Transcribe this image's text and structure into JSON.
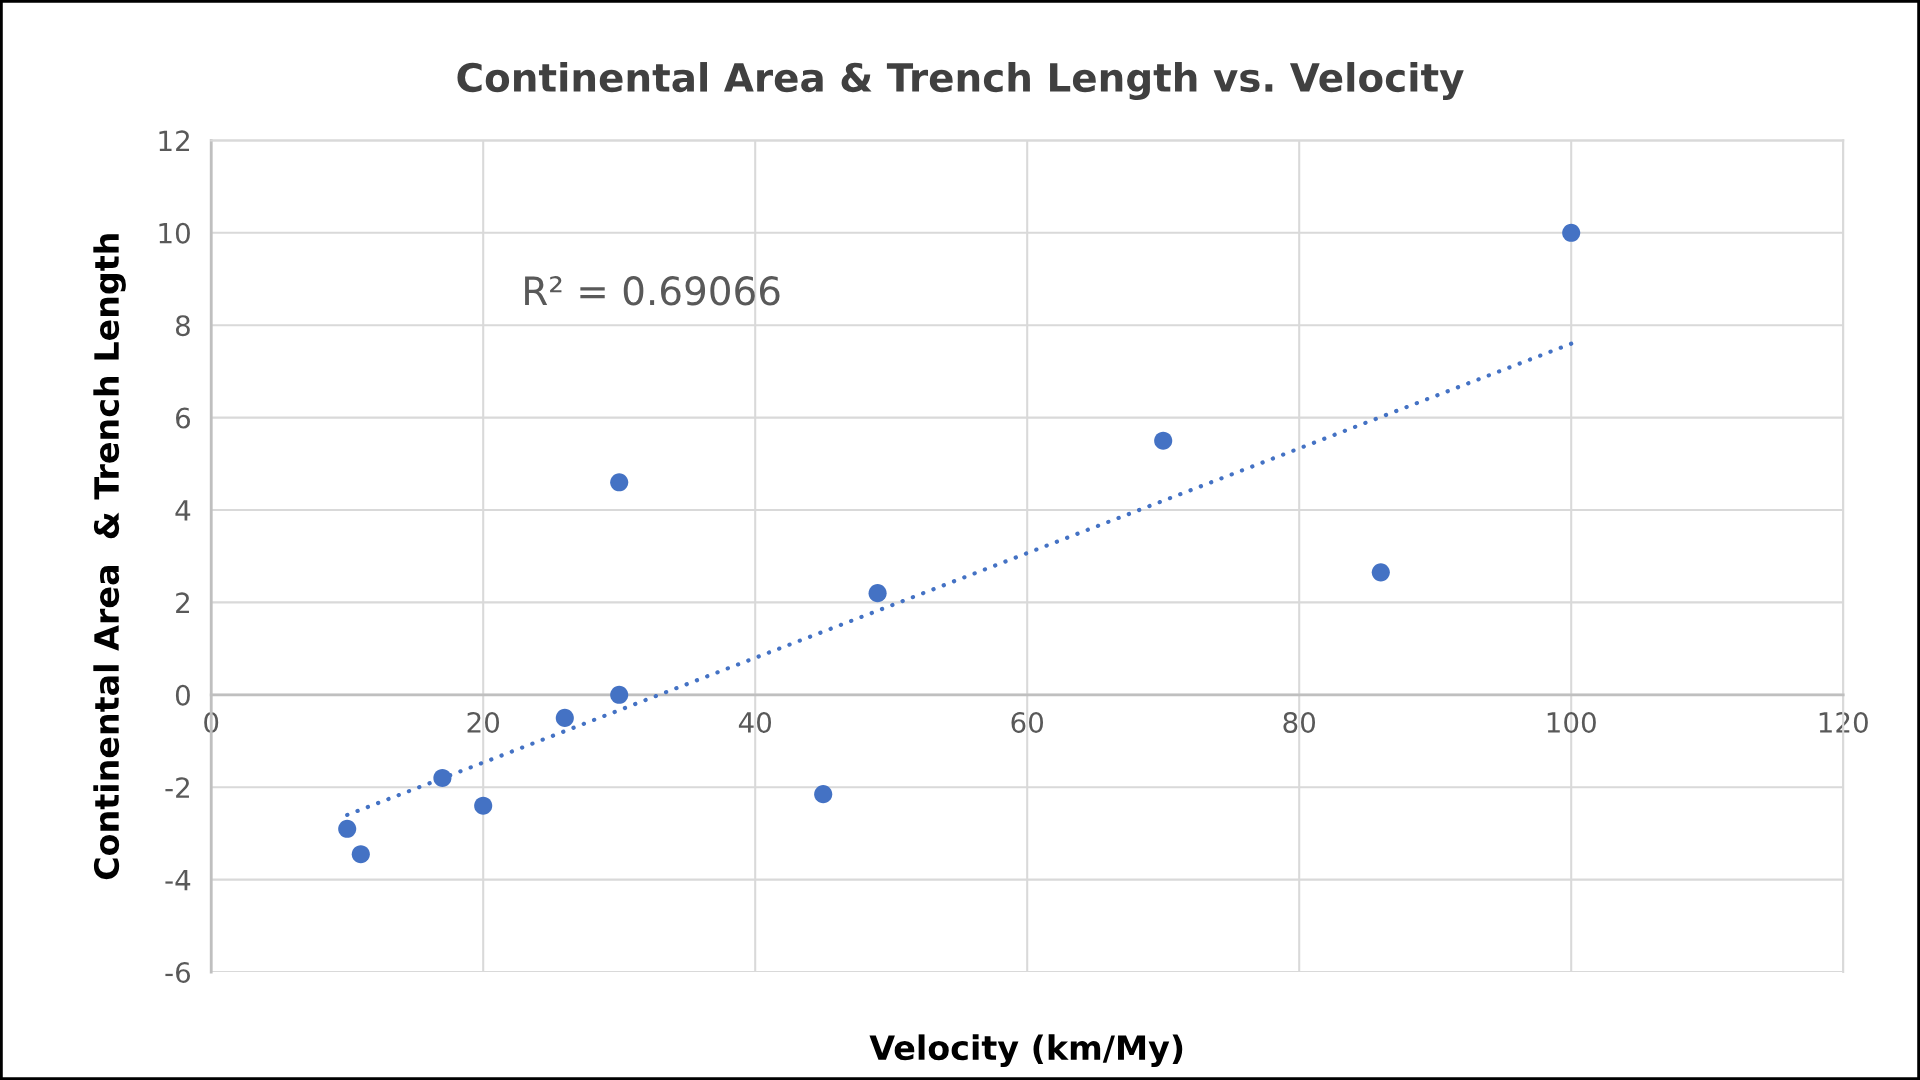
{
  "chart_data": {
    "type": "scatter",
    "title": "Continental Area & Trench Length vs. Velocity",
    "xlabel": "Velocity (km/My)",
    "ylabel": "Continental Area  & Trench Length",
    "annotations": [
      "R² = 0.69066"
    ],
    "series": [
      {
        "color": "#4472c4",
        "marker": "circle",
        "x": [
          10,
          11,
          17,
          20,
          26,
          30,
          30,
          45,
          49,
          70,
          86,
          100
        ],
        "values": [
          -2.9,
          -3.45,
          -1.8,
          -2.4,
          -0.5,
          0,
          4.6,
          -2.15,
          2.2,
          5.5,
          2.65,
          10
        ]
      },
      {
        "type": "line",
        "color": "#4472c4",
        "marker": "none",
        "line_style": "dotted",
        "x": [
          10,
          100
        ],
        "values": [
          -2.6,
          7.6
        ]
      }
    ],
    "xlim": [
      0,
      120
    ],
    "xticks": [
      0,
      20,
      40,
      60,
      80,
      100,
      120
    ],
    "ylim": [
      -6,
      12
    ],
    "yticks": [
      -6,
      -4,
      -2,
      0,
      2,
      4,
      6,
      8,
      10,
      12
    ],
    "grid": true
  }
}
